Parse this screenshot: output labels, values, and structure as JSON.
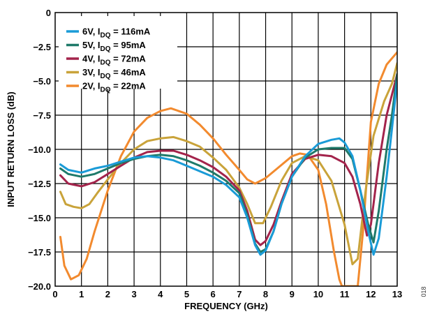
{
  "chart_data": {
    "type": "line",
    "xlabel": "FREQUENCY (GHz)",
    "ylabel": "INPUT RETURN LOSS (dB)",
    "xlim": [
      0,
      13
    ],
    "ylim": [
      -20,
      0
    ],
    "x_ticks": [
      0,
      1,
      2,
      3,
      4,
      5,
      6,
      7,
      8,
      9,
      10,
      11,
      12,
      13
    ],
    "y_ticks": [
      0,
      -2.5,
      -5.0,
      -7.5,
      -10.0,
      -12.5,
      -15.0,
      -17.5,
      -20.0
    ],
    "y_tick_labels": [
      "0",
      "−2.5",
      "−5.0",
      "−7.5",
      "−10.0",
      "−12.5",
      "−15.0",
      "−17.5",
      "−20.0"
    ],
    "grid": true,
    "legend_position": "top-left",
    "figure_id": "018",
    "series": [
      {
        "name": "6V, IDQ = 116mA",
        "legend_main": "6V, I",
        "legend_sub": "DQ",
        "legend_rest": " = 116mA",
        "color": "#1a9bd7",
        "points": [
          [
            0.2,
            -11.1
          ],
          [
            0.5,
            -11.5
          ],
          [
            1.0,
            -11.7
          ],
          [
            1.5,
            -11.4
          ],
          [
            2.0,
            -11.2
          ],
          [
            2.5,
            -10.9
          ],
          [
            3.0,
            -10.6
          ],
          [
            3.5,
            -10.5
          ],
          [
            4.0,
            -10.6
          ],
          [
            4.5,
            -10.8
          ],
          [
            5.0,
            -11.2
          ],
          [
            5.5,
            -11.6
          ],
          [
            6.0,
            -12.0
          ],
          [
            6.5,
            -12.6
          ],
          [
            7.0,
            -13.5
          ],
          [
            7.3,
            -15.0
          ],
          [
            7.6,
            -17.0
          ],
          [
            7.8,
            -17.7
          ],
          [
            8.0,
            -17.4
          ],
          [
            8.3,
            -16.0
          ],
          [
            8.6,
            -14.0
          ],
          [
            9.0,
            -12.0
          ],
          [
            9.5,
            -10.5
          ],
          [
            10.0,
            -9.6
          ],
          [
            10.5,
            -9.3
          ],
          [
            10.8,
            -9.2
          ],
          [
            11.0,
            -9.5
          ],
          [
            11.3,
            -10.5
          ],
          [
            11.6,
            -13.0
          ],
          [
            11.9,
            -16.0
          ],
          [
            12.1,
            -17.7
          ],
          [
            12.3,
            -16.5
          ],
          [
            12.6,
            -12.0
          ],
          [
            12.8,
            -8.5
          ],
          [
            13.0,
            -5.0
          ]
        ]
      },
      {
        "name": "5V, IDQ = 95mA",
        "legend_main": "5V, I",
        "legend_sub": "DQ",
        "legend_rest": " = 95mA",
        "color": "#1f7a6a",
        "points": [
          [
            0.2,
            -11.4
          ],
          [
            0.5,
            -11.8
          ],
          [
            1.0,
            -12.0
          ],
          [
            1.5,
            -11.8
          ],
          [
            2.0,
            -11.4
          ],
          [
            2.5,
            -11.0
          ],
          [
            3.0,
            -10.7
          ],
          [
            3.5,
            -10.5
          ],
          [
            4.0,
            -10.4
          ],
          [
            4.5,
            -10.5
          ],
          [
            5.0,
            -10.8
          ],
          [
            5.5,
            -11.2
          ],
          [
            6.0,
            -11.7
          ],
          [
            6.5,
            -12.3
          ],
          [
            7.0,
            -13.2
          ],
          [
            7.3,
            -14.8
          ],
          [
            7.6,
            -16.9
          ],
          [
            7.8,
            -17.5
          ],
          [
            8.0,
            -17.3
          ],
          [
            8.3,
            -16.0
          ],
          [
            8.6,
            -14.0
          ],
          [
            9.0,
            -12.0
          ],
          [
            9.5,
            -10.6
          ],
          [
            10.0,
            -10.0
          ],
          [
            10.5,
            -9.9
          ],
          [
            11.0,
            -9.9
          ],
          [
            11.3,
            -10.7
          ],
          [
            11.6,
            -13.0
          ],
          [
            11.9,
            -15.5
          ],
          [
            12.1,
            -16.8
          ],
          [
            12.3,
            -14.5
          ],
          [
            12.6,
            -10.0
          ],
          [
            12.8,
            -7.5
          ],
          [
            13.0,
            -4.5
          ]
        ]
      },
      {
        "name": "4V, IDQ = 72mA",
        "legend_main": "4V, I",
        "legend_sub": "DQ",
        "legend_rest": " = 72mA",
        "color": "#a3234b",
        "points": [
          [
            0.2,
            -11.9
          ],
          [
            0.5,
            -12.5
          ],
          [
            1.0,
            -12.7
          ],
          [
            1.5,
            -12.4
          ],
          [
            2.0,
            -11.8
          ],
          [
            2.5,
            -11.2
          ],
          [
            3.0,
            -10.6
          ],
          [
            3.5,
            -10.2
          ],
          [
            4.0,
            -10.1
          ],
          [
            4.5,
            -10.1
          ],
          [
            5.0,
            -10.4
          ],
          [
            5.5,
            -10.8
          ],
          [
            6.0,
            -11.3
          ],
          [
            6.5,
            -12.0
          ],
          [
            7.0,
            -13.0
          ],
          [
            7.3,
            -14.5
          ],
          [
            7.6,
            -16.6
          ],
          [
            7.8,
            -17.0
          ],
          [
            8.0,
            -16.7
          ],
          [
            8.3,
            -15.5
          ],
          [
            8.6,
            -13.8
          ],
          [
            9.0,
            -11.8
          ],
          [
            9.5,
            -10.7
          ],
          [
            10.0,
            -10.4
          ],
          [
            10.5,
            -10.5
          ],
          [
            11.0,
            -11.0
          ],
          [
            11.3,
            -12.0
          ],
          [
            11.6,
            -14.0
          ],
          [
            11.85,
            -16.3
          ],
          [
            12.0,
            -15.5
          ],
          [
            12.3,
            -11.0
          ],
          [
            12.6,
            -7.5
          ],
          [
            12.8,
            -6.0
          ],
          [
            13.0,
            -4.5
          ]
        ]
      },
      {
        "name": "3V, IDQ = 46mA",
        "legend_main": "3V, I",
        "legend_sub": "DQ",
        "legend_rest": " = 46mA",
        "color": "#c9a33a",
        "points": [
          [
            0.2,
            -13.1
          ],
          [
            0.4,
            -14.0
          ],
          [
            0.7,
            -14.2
          ],
          [
            1.0,
            -14.3
          ],
          [
            1.3,
            -14.0
          ],
          [
            1.6,
            -13.2
          ],
          [
            2.0,
            -12.2
          ],
          [
            2.5,
            -11.0
          ],
          [
            3.0,
            -10.0
          ],
          [
            3.5,
            -9.4
          ],
          [
            4.0,
            -9.2
          ],
          [
            4.5,
            -9.1
          ],
          [
            5.0,
            -9.4
          ],
          [
            5.5,
            -9.8
          ],
          [
            6.0,
            -10.6
          ],
          [
            6.5,
            -11.5
          ],
          [
            7.0,
            -12.8
          ],
          [
            7.3,
            -14.0
          ],
          [
            7.6,
            -15.4
          ],
          [
            7.9,
            -15.4
          ],
          [
            8.2,
            -14.2
          ],
          [
            8.6,
            -12.3
          ],
          [
            9.0,
            -11.0
          ],
          [
            9.5,
            -10.5
          ],
          [
            10.0,
            -10.8
          ],
          [
            10.5,
            -12.3
          ],
          [
            11.0,
            -15.5
          ],
          [
            11.3,
            -18.4
          ],
          [
            11.5,
            -18.0
          ],
          [
            11.8,
            -13.0
          ],
          [
            12.1,
            -9.0
          ],
          [
            12.5,
            -6.5
          ],
          [
            12.8,
            -5.2
          ],
          [
            13.0,
            -3.7
          ]
        ]
      },
      {
        "name": "2V, IDQ = 22mA",
        "legend_main": "2V, I",
        "legend_sub": "DQ",
        "legend_rest": " = 22mA",
        "color": "#f28a2e",
        "points": [
          [
            0.2,
            -16.4
          ],
          [
            0.35,
            -18.5
          ],
          [
            0.6,
            -19.5
          ],
          [
            0.9,
            -19.2
          ],
          [
            1.2,
            -18.0
          ],
          [
            1.5,
            -16.0
          ],
          [
            2.0,
            -13.0
          ],
          [
            2.5,
            -10.5
          ],
          [
            3.0,
            -8.7
          ],
          [
            3.5,
            -7.7
          ],
          [
            4.0,
            -7.2
          ],
          [
            4.4,
            -7.0
          ],
          [
            5.0,
            -7.4
          ],
          [
            5.5,
            -8.2
          ],
          [
            6.0,
            -9.2
          ],
          [
            6.5,
            -10.4
          ],
          [
            7.0,
            -11.5
          ],
          [
            7.3,
            -12.2
          ],
          [
            7.6,
            -12.5
          ],
          [
            8.0,
            -12.1
          ],
          [
            8.5,
            -11.3
          ],
          [
            9.0,
            -10.5
          ],
          [
            9.3,
            -10.3
          ],
          [
            9.6,
            -10.4
          ],
          [
            10.0,
            -11.5
          ],
          [
            10.3,
            -14.0
          ],
          [
            10.6,
            -17.5
          ],
          [
            10.8,
            -19.5
          ],
          [
            10.9,
            -20.0
          ],
          [
            11.5,
            -20.0
          ],
          [
            11.7,
            -16.0
          ],
          [
            12.0,
            -8.0
          ],
          [
            12.3,
            -5.2
          ],
          [
            12.6,
            -3.8
          ],
          [
            13.0,
            -2.9
          ]
        ]
      }
    ]
  }
}
